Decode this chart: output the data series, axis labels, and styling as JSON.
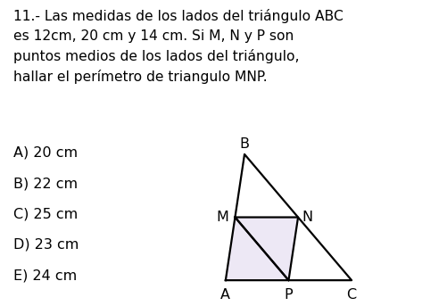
{
  "title_text": "11.- Las medidas de los lados del triángulo ABC\nes 12cm, 20 cm y 14 cm. Si M, N y P son\npuntos medios de los lados del triángulo,\nhallar el perímetro de triangulo MNP.",
  "options": [
    "A) 20 cm",
    "B) 22 cm",
    "C) 25 cm",
    "D) 23 cm",
    "E) 24 cm"
  ],
  "bg_color": "#ffffff",
  "text_color": "#000000",
  "title_fontsize": 11.2,
  "options_fontsize": 11.5,
  "triangle_ABC": {
    "A": [
      0.0,
      0.0
    ],
    "B": [
      0.15,
      1.0
    ],
    "C": [
      1.0,
      0.0
    ]
  },
  "triangle_color": "#000000",
  "mnp_fill_color": "#ede8f5",
  "line_width": 1.6,
  "label_fontsize": 11.5
}
